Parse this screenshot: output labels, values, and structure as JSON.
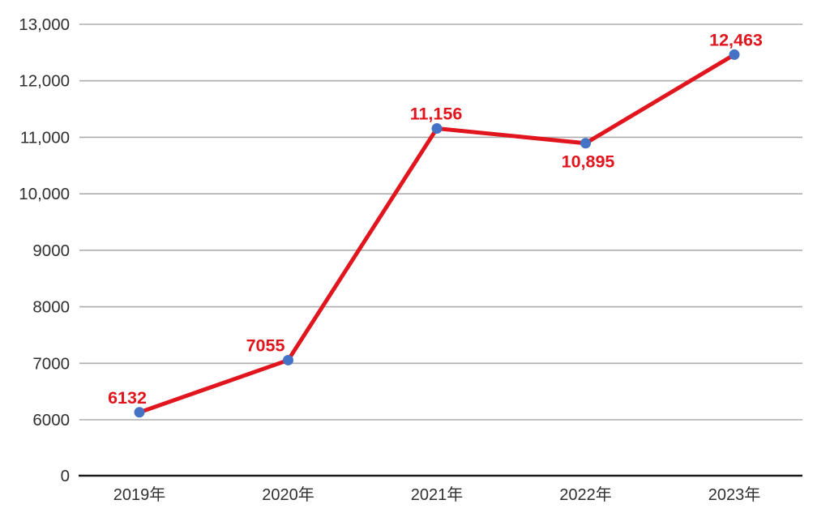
{
  "chart_data": {
    "type": "line",
    "title": "",
    "xlabel": "",
    "ylabel": "",
    "categories": [
      "2019年",
      "2020年",
      "2021年",
      "2022年",
      "2023年"
    ],
    "values": [
      6132,
      7055,
      11156,
      10895,
      12463
    ],
    "point_labels": [
      "6132",
      "7055",
      "11,156",
      "10,895",
      "12,463"
    ],
    "label_positions": [
      "above",
      "above",
      "above",
      "below",
      "above"
    ],
    "label_dx": [
      -15,
      -28,
      -1,
      3,
      2
    ],
    "y_ticks": [
      {
        "label": "13,000",
        "value": 13000
      },
      {
        "label": "12,000",
        "value": 12000
      },
      {
        "label": "11,000",
        "value": 11000
      },
      {
        "label": "10,000",
        "value": 10000
      },
      {
        "label": "9000",
        "value": 9000
      },
      {
        "label": "8000",
        "value": 8000
      },
      {
        "label": "7000",
        "value": 7000
      },
      {
        "label": "6000",
        "value": 6000
      },
      {
        "label": "0",
        "value": 0
      }
    ],
    "axis_break_between_0_and_6000": true,
    "ylim": [
      0,
      13000
    ],
    "grid": "horizontal",
    "legend": "none",
    "colors": {
      "line": "#E0151E",
      "marker": "#4472C4",
      "data_label": "#E0151E",
      "gridline": "#ADADAD",
      "axis_line": "#1A1A1A",
      "tick_text": "#303030"
    }
  }
}
